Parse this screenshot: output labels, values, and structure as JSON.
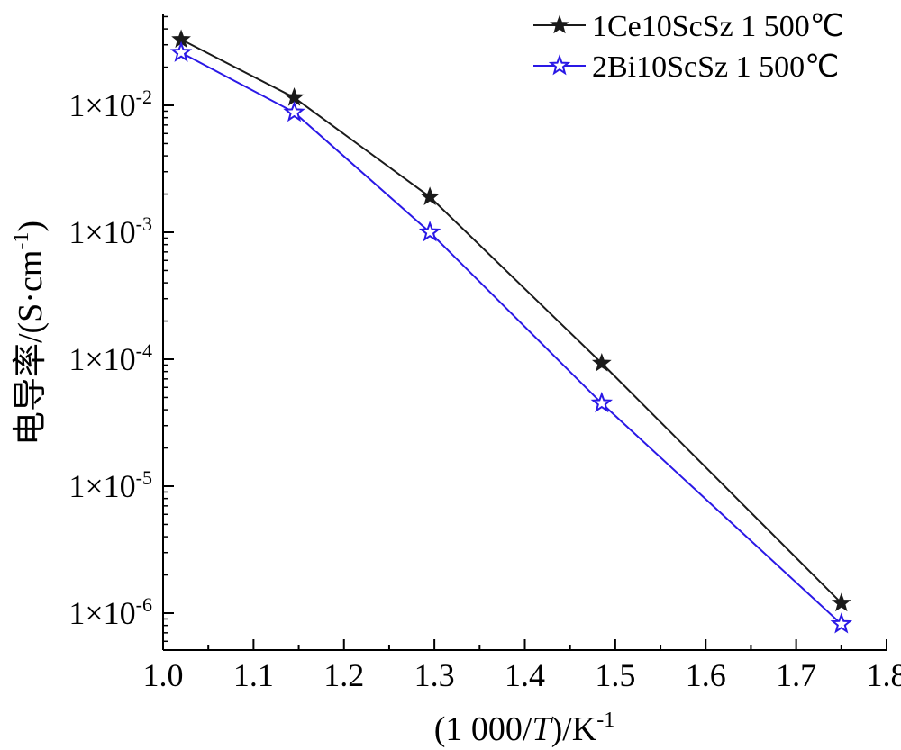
{
  "chart_data": {
    "type": "line",
    "xlabel": {
      "prefix": "(1 000/",
      "italic": "T",
      "suffix": ")/K",
      "sup": "-1"
    },
    "ylabel": {
      "main": "电导率/(S·cm",
      "sup": "-1",
      "close": ")"
    },
    "xlim": [
      1.0,
      1.8
    ],
    "ylim_log10": [
      -6.3,
      -4.6
    ],
    "y_scale": "log",
    "grid": false,
    "legend_position": "top-right",
    "x_ticks": [
      "1.0",
      "1.1",
      "1.2",
      "1.3",
      "1.4",
      "1.5",
      "1.6",
      "1.7",
      "1.8"
    ],
    "y_ticks": [
      {
        "base": "1×10",
        "exp": "-2"
      },
      {
        "base": "1×10",
        "exp": "-3"
      },
      {
        "base": "1×10",
        "exp": "-4"
      },
      {
        "base": "1×10",
        "exp": "-5"
      },
      {
        "base": "1×10",
        "exp": "-6"
      }
    ],
    "x": [
      1.02,
      1.145,
      1.295,
      1.485,
      1.75
    ],
    "series": [
      {
        "name": "1Ce10ScSz 1 500℃",
        "color": "#1a1a1a",
        "marker": "filled-star",
        "values": [
          0.033,
          0.0115,
          0.0019,
          9.3e-05,
          1.2e-06
        ]
      },
      {
        "name": "2Bi10ScSz 1 500℃",
        "color": "#2a18e6",
        "marker": "open-star",
        "values": [
          0.026,
          0.0088,
          0.001,
          4.5e-05,
          8.2e-07
        ]
      }
    ]
  }
}
